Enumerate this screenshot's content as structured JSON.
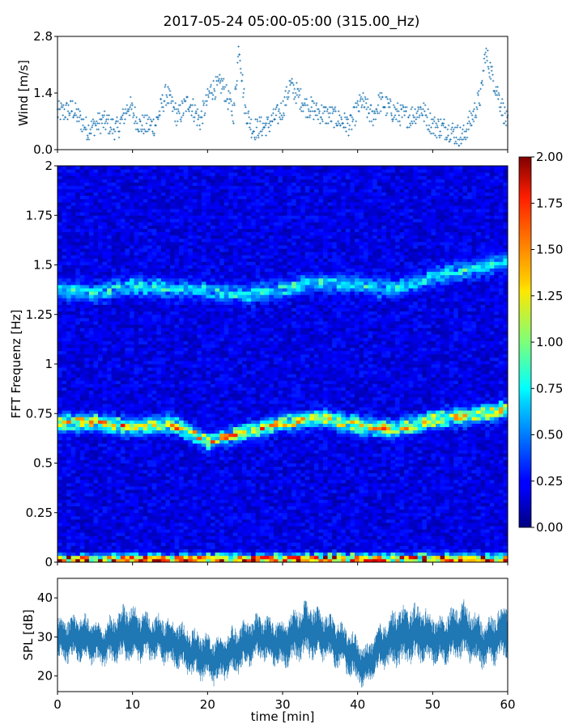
{
  "figure": {
    "title": "2017-05-24 05:00-05:00 (315.00_Hz)"
  },
  "chart_data": [
    {
      "type": "scatter",
      "panel": "wind",
      "ylabel": "Wind [m/s]",
      "xlim": [
        0,
        60
      ],
      "ylim": [
        0,
        2.8
      ],
      "yticks": [
        "0.0",
        "1.4",
        "2.8"
      ],
      "marker": "+",
      "color": "#1f77b4",
      "approx_profile": {
        "x": [
          0,
          2,
          4,
          6,
          8,
          9.5,
          11,
          13,
          14.5,
          16,
          17.5,
          19,
          20.5,
          22,
          23.5,
          24.2,
          25,
          26,
          28,
          30,
          31,
          33,
          35,
          37,
          39,
          40.5,
          42,
          43,
          45,
          47,
          48.5,
          50,
          52,
          54,
          55.5,
          56.5,
          57,
          58,
          59,
          60
        ],
        "y": [
          0.9,
          1.0,
          0.5,
          0.7,
          0.5,
          1.1,
          0.6,
          0.6,
          1.4,
          0.8,
          1.2,
          0.7,
          1.5,
          1.6,
          0.9,
          2.6,
          1.0,
          0.5,
          0.6,
          1.0,
          1.6,
          1.1,
          0.9,
          0.8,
          0.6,
          1.2,
          0.8,
          1.2,
          0.9,
          0.8,
          1.0,
          0.6,
          0.5,
          0.3,
          0.9,
          1.4,
          2.4,
          1.8,
          1.2,
          0.6
        ]
      }
    },
    {
      "type": "heatmap",
      "panel": "spectrogram",
      "ylabel": "FFT Frequenz [Hz]",
      "xlim": [
        0,
        60
      ],
      "ylim": [
        0,
        2
      ],
      "yticks": [
        "0",
        "0.25",
        "0.5",
        "0.75",
        "1",
        "1.25",
        "1.5",
        "1.75",
        "2"
      ],
      "colormap": "jet",
      "colorbar": {
        "range": [
          0,
          2
        ],
        "ticks": [
          "0.00",
          "0.25",
          "0.50",
          "0.75",
          "1.00",
          "1.25",
          "1.50",
          "1.75",
          "2.00"
        ]
      },
      "background_level": 0.2,
      "bands": [
        {
          "name": "low",
          "x": [
            0,
            10,
            20,
            30,
            40,
            50,
            60
          ],
          "y": [
            0.015,
            0.015,
            0.015,
            0.015,
            0.015,
            0.015,
            0.015
          ],
          "intensity": 1.55,
          "width": 0.022
        },
        {
          "name": "middle",
          "x": [
            0,
            5,
            10,
            15,
            20,
            25,
            30,
            35,
            40,
            45,
            50,
            55,
            60
          ],
          "y": [
            0.7,
            0.71,
            0.68,
            0.7,
            0.61,
            0.66,
            0.7,
            0.73,
            0.69,
            0.67,
            0.72,
            0.74,
            0.77
          ],
          "intensity": 1.1,
          "width": 0.035
        },
        {
          "name": "upper",
          "x": [
            0,
            5,
            10,
            15,
            20,
            25,
            30,
            35,
            40,
            45,
            50,
            55,
            60
          ],
          "y": [
            1.38,
            1.36,
            1.4,
            1.38,
            1.37,
            1.35,
            1.38,
            1.41,
            1.4,
            1.38,
            1.44,
            1.48,
            1.52
          ],
          "intensity": 0.55,
          "width": 0.04
        }
      ]
    },
    {
      "type": "area",
      "panel": "spl",
      "ylabel": "SPL [dB]",
      "xlabel": "time [min]",
      "xlim": [
        0,
        60
      ],
      "ylim": [
        16,
        45
      ],
      "yticks": [
        "20",
        "30",
        "40"
      ],
      "xticks": [
        "0",
        "10",
        "20",
        "30",
        "40",
        "50",
        "60"
      ],
      "color": "#1f77b4",
      "approx_profile": {
        "x": [
          0,
          3,
          6,
          9,
          12,
          15,
          18,
          21,
          24,
          27,
          30,
          33,
          36,
          39,
          41,
          43,
          45,
          48,
          51,
          54,
          57,
          60
        ],
        "center": [
          29,
          30,
          28,
          31,
          30,
          29,
          26,
          24,
          27,
          30,
          28,
          32,
          30,
          26,
          22,
          27,
          30,
          31,
          29,
          32,
          28,
          32
        ],
        "spread": [
          4,
          4,
          3.5,
          5,
          4,
          4,
          4,
          4,
          4,
          4,
          4,
          5,
          4,
          4,
          3.5,
          4,
          5,
          5,
          4,
          5,
          4,
          5
        ]
      }
    }
  ]
}
